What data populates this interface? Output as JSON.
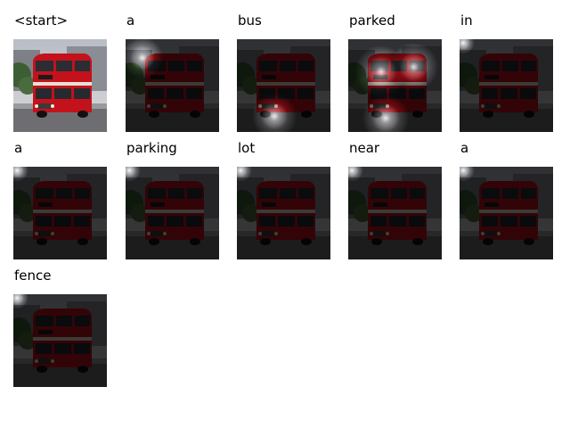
{
  "caption_steps": [
    {
      "word": "<start>",
      "attention": null
    },
    {
      "word": "a",
      "attention": [
        {
          "fx": 0.18,
          "fy": 0.2,
          "r": 0.22
        }
      ]
    },
    {
      "word": "bus",
      "attention": [
        {
          "fx": 0.4,
          "fy": 0.83,
          "r": 0.24
        }
      ]
    },
    {
      "word": "parked",
      "attention": [
        {
          "fx": 0.4,
          "fy": 0.85,
          "r": 0.25
        },
        {
          "fx": 0.35,
          "fy": 0.35,
          "r": 0.28
        },
        {
          "fx": 0.7,
          "fy": 0.3,
          "r": 0.26
        }
      ]
    },
    {
      "word": "in",
      "attention": [
        {
          "fx": 0.04,
          "fy": 0.04,
          "r": 0.12
        }
      ]
    },
    {
      "word": "a",
      "attention": [
        {
          "fx": 0.04,
          "fy": 0.04,
          "r": 0.12
        }
      ]
    },
    {
      "word": "parking",
      "attention": [
        {
          "fx": 0.04,
          "fy": 0.04,
          "r": 0.12
        }
      ]
    },
    {
      "word": "lot",
      "attention": [
        {
          "fx": 0.04,
          "fy": 0.04,
          "r": 0.12
        }
      ]
    },
    {
      "word": "near",
      "attention": [
        {
          "fx": 0.04,
          "fy": 0.04,
          "r": 0.12
        }
      ]
    },
    {
      "word": "a",
      "attention": [
        {
          "fx": 0.04,
          "fy": 0.04,
          "r": 0.12
        }
      ]
    },
    {
      "word": "fence",
      "attention": [
        {
          "fx": 0.04,
          "fy": 0.04,
          "r": 0.12
        }
      ]
    }
  ]
}
